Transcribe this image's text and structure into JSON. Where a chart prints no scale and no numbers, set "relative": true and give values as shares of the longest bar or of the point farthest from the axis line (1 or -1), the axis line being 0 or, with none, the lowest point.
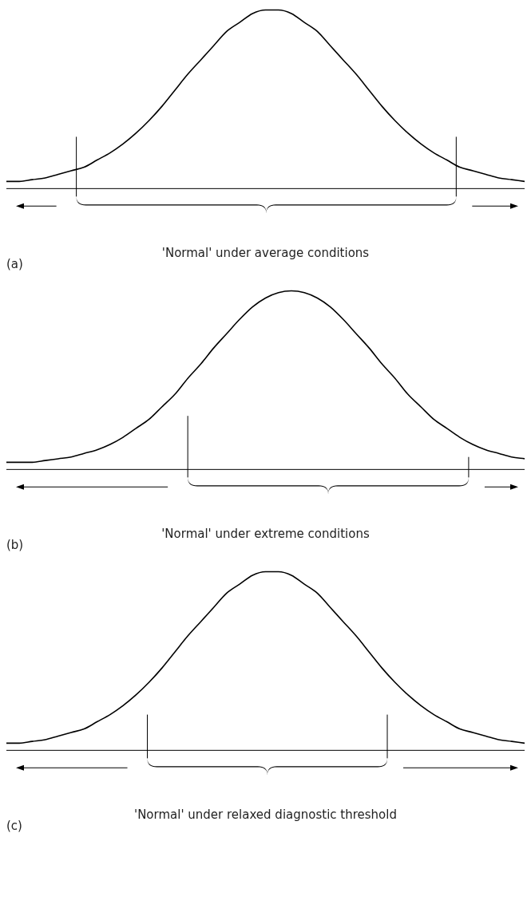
{
  "chart_data": [
    {
      "type": "line",
      "relative": true,
      "categories": [
        null,
        null,
        null,
        null,
        null,
        null,
        null,
        null,
        null,
        null,
        null,
        null,
        null,
        null,
        null,
        null,
        null,
        null,
        null,
        null,
        null,
        null,
        null,
        null,
        null,
        null,
        null,
        null,
        null,
        null,
        null,
        null,
        null,
        null,
        null,
        null,
        null,
        null,
        null,
        null,
        null
      ],
      "series": [
        {
          "color": "#000000",
          "values": [
            0.04,
            0.04,
            0.05,
            0.06,
            0.08,
            0.1,
            0.12,
            0.16,
            0.2,
            0.25,
            0.31,
            0.38,
            0.46,
            0.55,
            0.64,
            0.72,
            0.8,
            0.88,
            0.93,
            0.98,
            1.0,
            1.0,
            0.98,
            0.93,
            0.88,
            0.8,
            0.72,
            0.64,
            0.55,
            0.46,
            0.38,
            0.31,
            0.25,
            0.2,
            0.16,
            0.12,
            0.1,
            0.08,
            0.06,
            0.05,
            0.04
          ]
        }
      ],
      "annotations": [
        "(a)",
        "'Normal' under average conditions"
      ]
    },
    {
      "type": "line",
      "relative": true,
      "categories": [
        null,
        null,
        null,
        null,
        null,
        null,
        null,
        null,
        null,
        null,
        null,
        null,
        null,
        null,
        null,
        null,
        null,
        null,
        null,
        null,
        null,
        null,
        null,
        null,
        null,
        null,
        null,
        null,
        null,
        null,
        null,
        null,
        null,
        null,
        null,
        null,
        null,
        null,
        null,
        null,
        null
      ],
      "series": [
        {
          "color": "#000000",
          "values": [
            0.04,
            0.04,
            0.04,
            0.05,
            0.06,
            0.07,
            0.09,
            0.11,
            0.14,
            0.18,
            0.23,
            0.28,
            0.35,
            0.42,
            0.51,
            0.59,
            0.68,
            0.76,
            0.84,
            0.91,
            0.96,
            0.99,
            1,
            0.99,
            0.96,
            0.91,
            0.84,
            0.76,
            0.68,
            0.59,
            0.51,
            0.42,
            0.35,
            0.28,
            0.23,
            0.18,
            0.14,
            0.11,
            0.09,
            0.07,
            0.06
          ]
        }
      ],
      "annotations": [
        "(b)",
        "'Normal' under extreme conditions"
      ]
    },
    {
      "type": "line",
      "relative": true,
      "categories": [
        null,
        null,
        null,
        null,
        null,
        null,
        null,
        null,
        null,
        null,
        null,
        null,
        null,
        null,
        null,
        null,
        null,
        null,
        null,
        null,
        null,
        null,
        null,
        null,
        null,
        null,
        null,
        null,
        null,
        null,
        null,
        null,
        null,
        null,
        null,
        null,
        null,
        null,
        null,
        null,
        null
      ],
      "series": [
        {
          "color": "#000000",
          "values": [
            0.04,
            0.04,
            0.05,
            0.06,
            0.08,
            0.1,
            0.12,
            0.16,
            0.2,
            0.25,
            0.31,
            0.38,
            0.46,
            0.55,
            0.64,
            0.72,
            0.8,
            0.88,
            0.93,
            0.98,
            1.0,
            1.0,
            0.98,
            0.93,
            0.88,
            0.8,
            0.72,
            0.64,
            0.55,
            0.46,
            0.38,
            0.31,
            0.25,
            0.2,
            0.16,
            0.12,
            0.1,
            0.08,
            0.06,
            0.05,
            0.04
          ]
        }
      ],
      "annotations": [
        "(c)",
        "'Normal' under relaxed diagnostic threshold"
      ]
    }
  ]
}
